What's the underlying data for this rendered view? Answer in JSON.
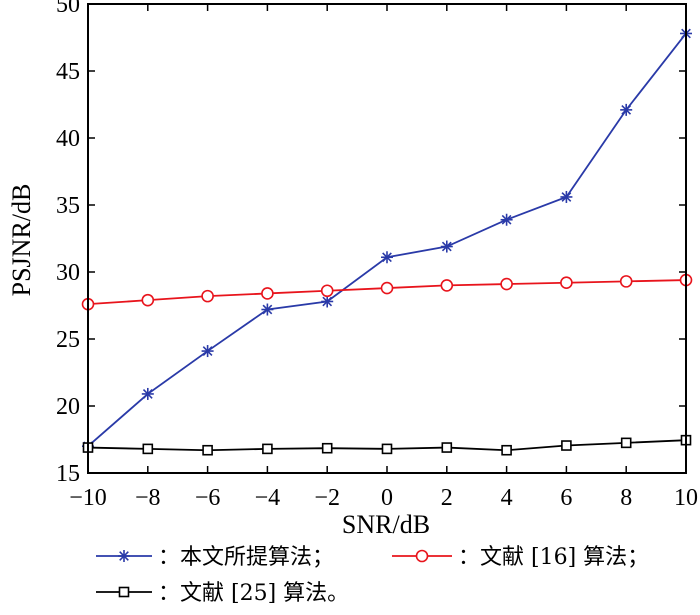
{
  "chart_data": {
    "type": "line",
    "xlabel": "SNR/dB",
    "ylabel": "PSJNR/dB",
    "xlim": [
      -10,
      10
    ],
    "ylim": [
      15,
      50
    ],
    "xticks": [
      -10,
      -8,
      -6,
      -4,
      -2,
      0,
      2,
      4,
      6,
      8,
      10
    ],
    "yticks": [
      15,
      20,
      25,
      30,
      35,
      40,
      45,
      50
    ],
    "x": [
      -10,
      -8,
      -6,
      -4,
      -2,
      0,
      2,
      4,
      6,
      8,
      10
    ],
    "grid": false,
    "legend_position": "bottom",
    "series": [
      {
        "name": "：本文所提算法；",
        "color": "#2a3aa8",
        "marker": "asterisk",
        "values": [
          17.0,
          20.9,
          24.1,
          27.2,
          27.8,
          31.1,
          31.9,
          33.9,
          35.6,
          42.1,
          47.8
        ]
      },
      {
        "name": "：文献 [16] 算法；",
        "color": "#e8141c",
        "marker": "circle",
        "values": [
          27.6,
          27.9,
          28.2,
          28.4,
          28.6,
          28.8,
          29.0,
          29.1,
          29.2,
          29.3,
          29.4
        ]
      },
      {
        "name": "：文献 [25] 算法。",
        "color": "#000000",
        "marker": "square",
        "values": [
          16.9,
          16.8,
          16.7,
          16.8,
          16.85,
          16.8,
          16.9,
          16.7,
          17.05,
          17.25,
          17.45
        ]
      }
    ]
  }
}
